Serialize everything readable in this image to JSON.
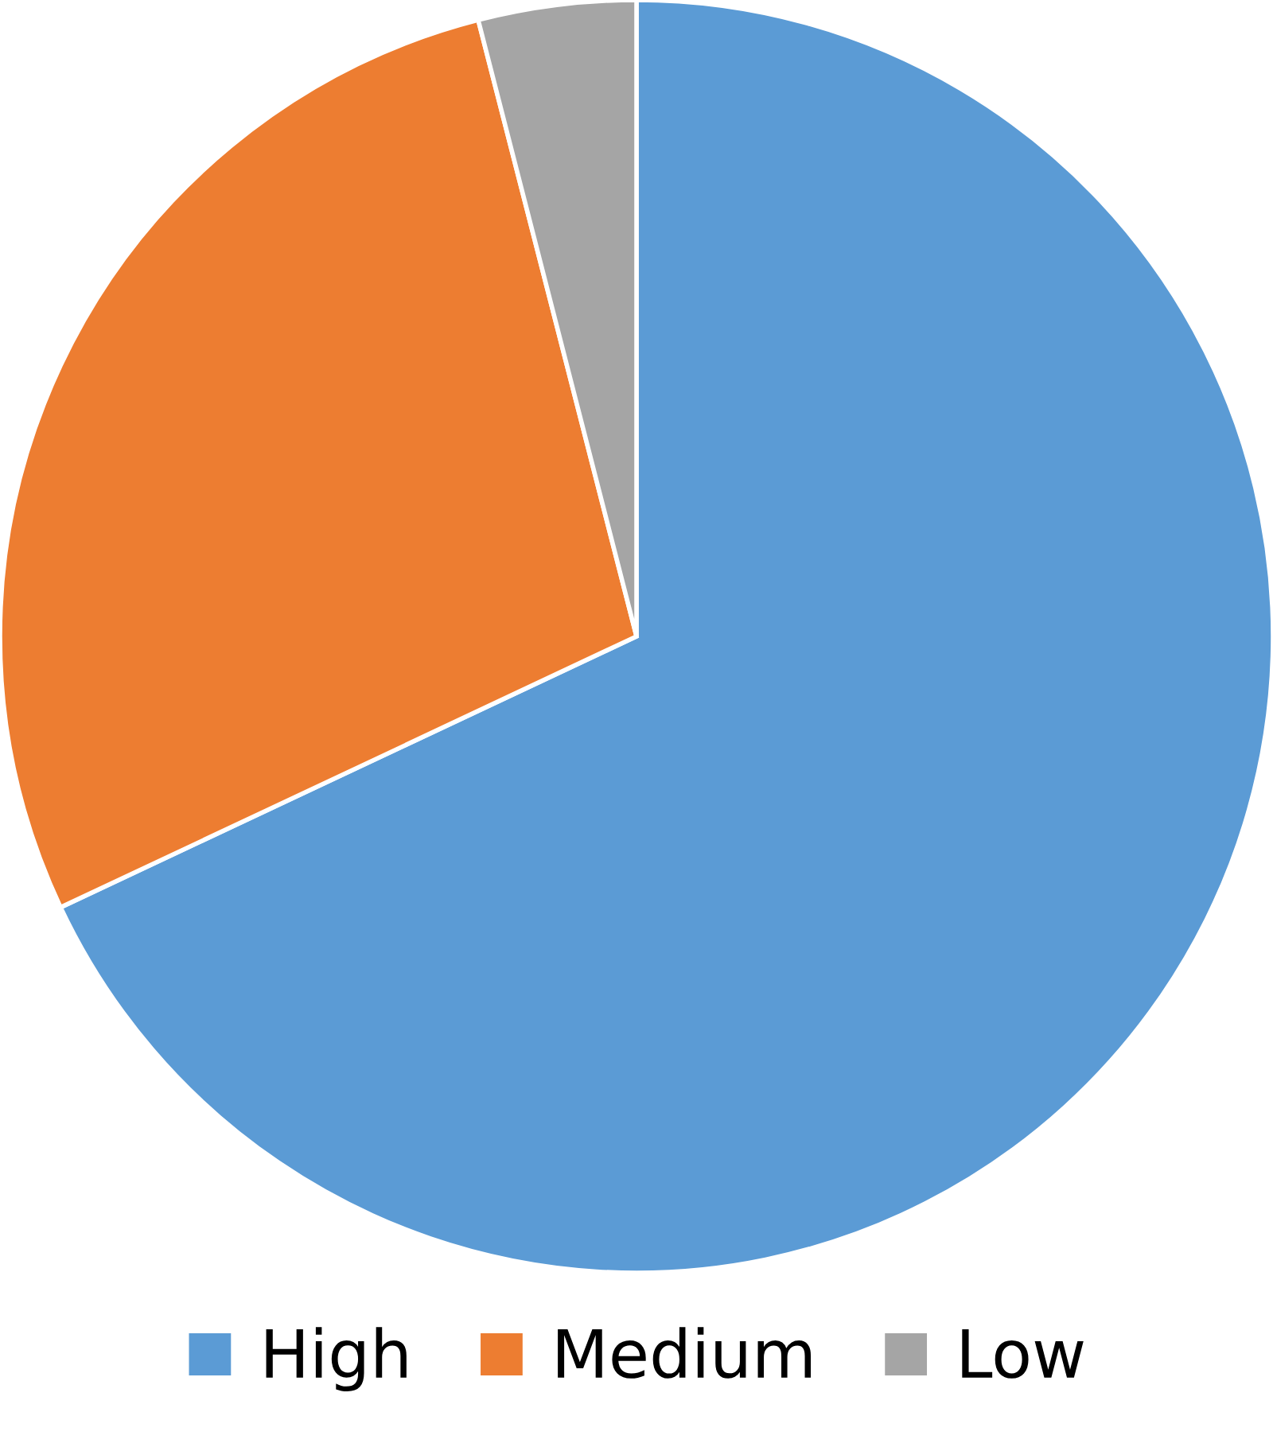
{
  "chart_data": {
    "type": "pie",
    "categories": [
      "High",
      "Medium",
      "Low"
    ],
    "values": [
      68,
      28,
      4
    ],
    "colors": [
      "#5b9bd5",
      "#ed7d31",
      "#a5a5a5"
    ],
    "legend": "bottom"
  }
}
